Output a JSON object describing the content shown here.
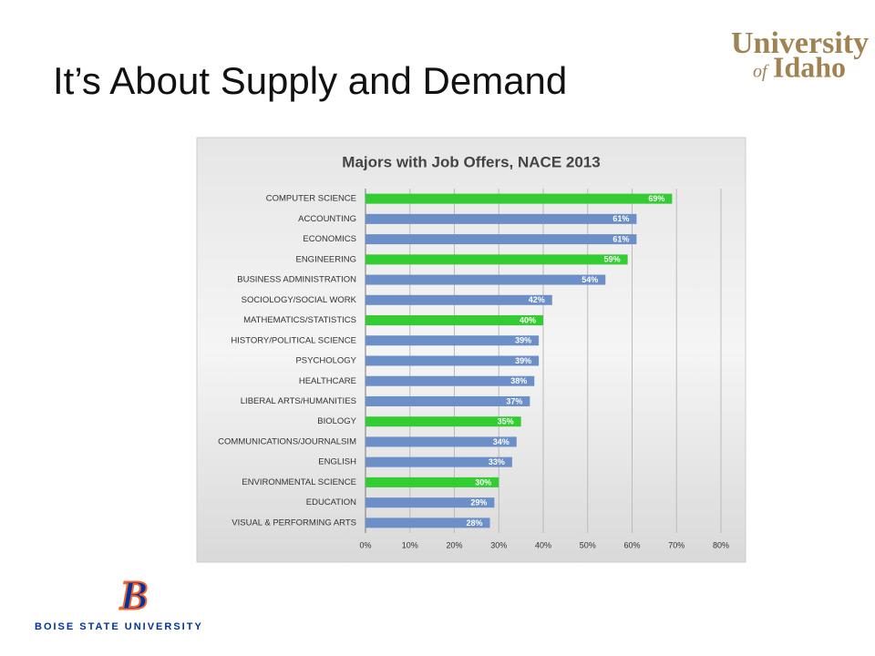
{
  "slide": {
    "title": "It’s About Supply and Demand",
    "logo_top": {
      "line1": "University",
      "line2_small": "of",
      "line2": "Idaho"
    },
    "logo_bottom": {
      "letter": "B",
      "text": "BOISE STATE UNIVERSITY"
    }
  },
  "chart_data": {
    "type": "bar",
    "orientation": "horizontal",
    "title": "Majors with Job Offers, NACE 2013",
    "categories": [
      "COMPUTER SCIENCE",
      "ACCOUNTING",
      "ECONOMICS",
      "ENGINEERING",
      "BUSINESS ADMINISTRATION",
      "SOCIOLOGY/SOCIAL WORK",
      "MATHEMATICS/STATISTICS",
      "HISTORY/POLITICAL SCIENCE",
      "PSYCHOLOGY",
      "HEALTHCARE",
      "LIBERAL ARTS/HUMANITIES",
      "BIOLOGY",
      "COMMUNICATIONS/JOURNALSIM",
      "ENGLISH",
      "ENVIRONMENTAL SCIENCE",
      "EDUCATION",
      "VISUAL & PERFORMING ARTS"
    ],
    "values": [
      69,
      61,
      61,
      59,
      54,
      42,
      40,
      39,
      39,
      38,
      37,
      35,
      34,
      33,
      30,
      29,
      28
    ],
    "value_labels": [
      "69%",
      "61%",
      "61%",
      "59%",
      "54%",
      "42%",
      "40%",
      "39%",
      "39%",
      "38%",
      "37%",
      "35%",
      "34%",
      "33%",
      "30%",
      "29%",
      "28%"
    ],
    "colors": [
      "#33cc33",
      "#6b8fc6",
      "#6b8fc6",
      "#33cc33",
      "#6b8fc6",
      "#6b8fc6",
      "#33cc33",
      "#6b8fc6",
      "#6b8fc6",
      "#6b8fc6",
      "#6b8fc6",
      "#33cc33",
      "#6b8fc6",
      "#6b8fc6",
      "#33cc33",
      "#6b8fc6",
      "#6b8fc6"
    ],
    "xlim": [
      0,
      80
    ],
    "xticks": [
      {
        "value": 0,
        "label": "0%"
      },
      {
        "value": 10,
        "label": "10%"
      },
      {
        "value": 20,
        "label": "20%"
      },
      {
        "value": 30,
        "label": "30%"
      },
      {
        "value": 40,
        "label": "40%"
      },
      {
        "value": 50,
        "label": "50%"
      },
      {
        "value": 60,
        "label": "60%"
      },
      {
        "value": 70,
        "label": "70%"
      },
      {
        "value": 80,
        "label": "80%"
      }
    ],
    "grid": true
  }
}
